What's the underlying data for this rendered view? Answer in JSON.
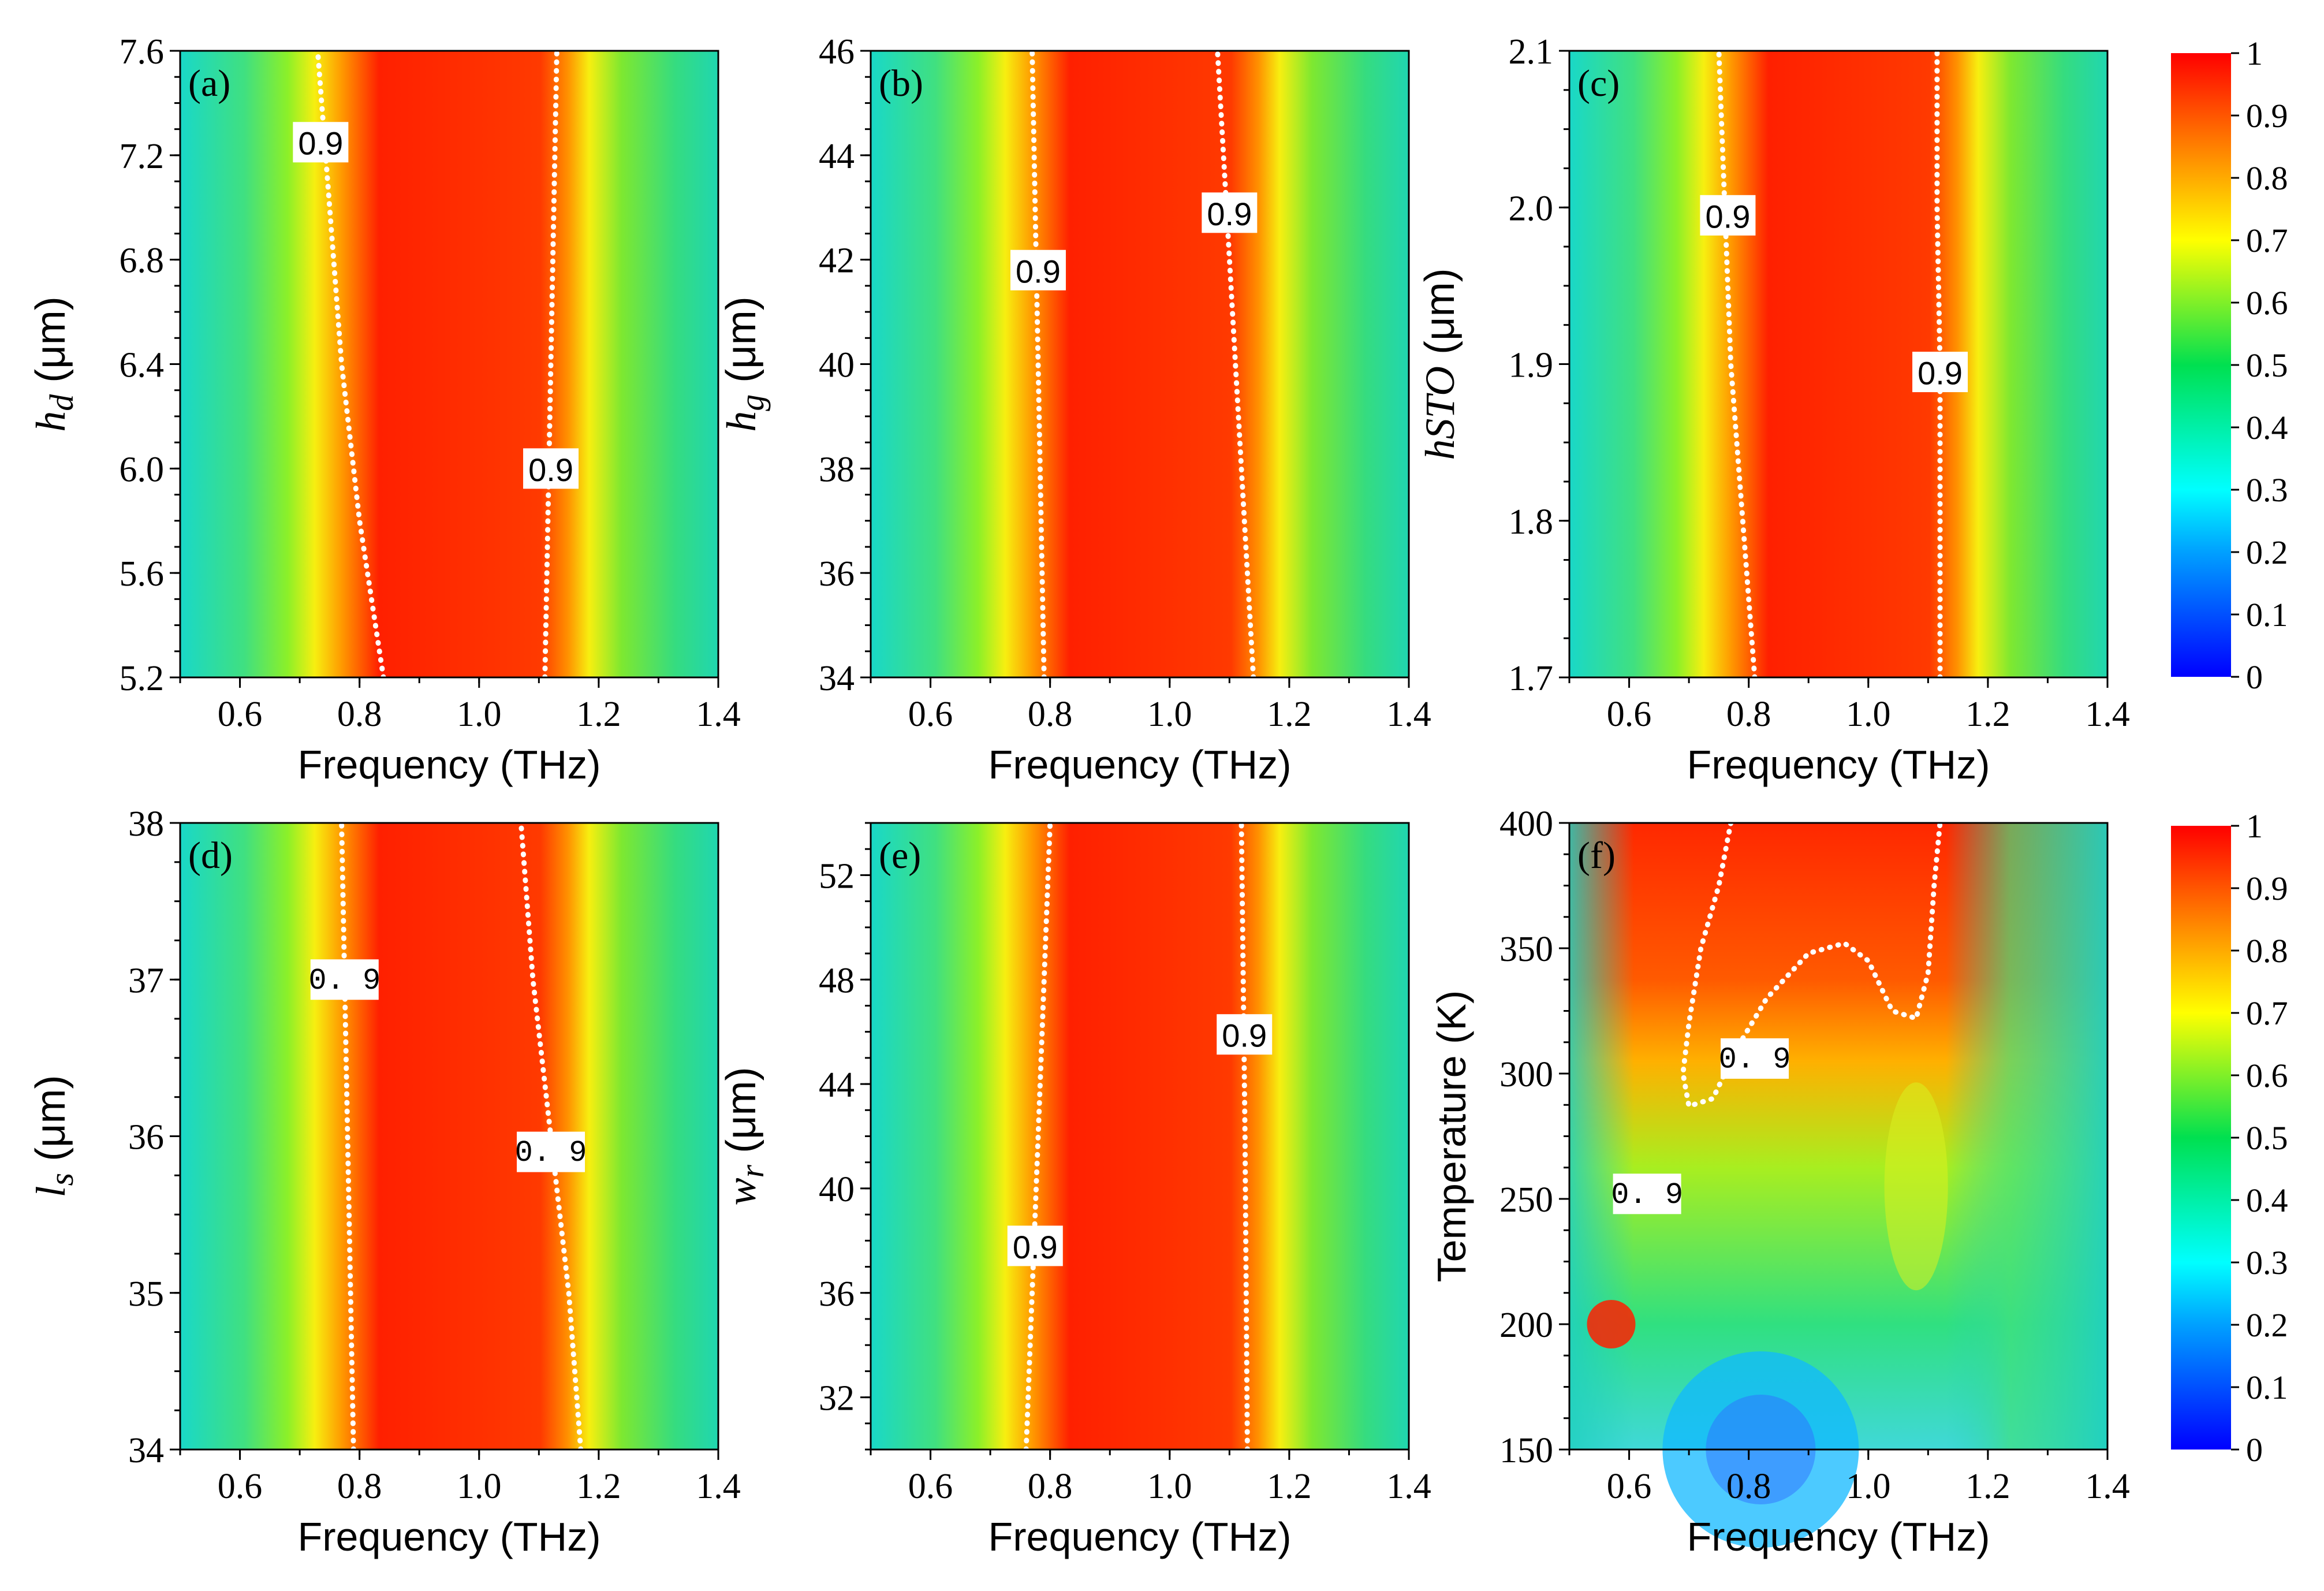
{
  "chart_data": [
    {
      "type": "heatmap",
      "panel_tag": "(a)",
      "xlabel": "Frequency (THz)",
      "ylabel_main": "h",
      "ylabel_sub": "d",
      "ylabel_unit": " (μm)",
      "xlim": [
        0.5,
        1.4
      ],
      "ylim": [
        5.2,
        7.6
      ],
      "xticks": [
        "0.6",
        "0.8",
        "1.0",
        "1.2",
        "1.4"
      ],
      "xtick_values": [
        0.6,
        0.8,
        1.0,
        1.2,
        1.4
      ],
      "yticks": [
        "5.2",
        "5.6",
        "6.0",
        "6.4",
        "6.8",
        "7.2",
        "7.6"
      ],
      "ytick_values": [
        5.2,
        5.6,
        6.0,
        6.4,
        6.8,
        7.2,
        7.6
      ],
      "contour_level": 0.9,
      "contour_label": "0.9",
      "contours": [
        [
          [
            0.84,
            5.2
          ],
          [
            0.8,
            5.8
          ],
          [
            0.77,
            6.4
          ],
          [
            0.75,
            7.0
          ],
          [
            0.73,
            7.6
          ]
        ],
        [
          [
            1.11,
            5.2
          ],
          [
            1.115,
            5.8
          ],
          [
            1.12,
            6.4
          ],
          [
            1.125,
            7.0
          ],
          [
            1.13,
            7.6
          ]
        ]
      ],
      "contour_labels_at": [
        [
          0.735,
          7.25
        ],
        [
          1.12,
          6.0
        ]
      ]
    },
    {
      "type": "heatmap",
      "panel_tag": "(b)",
      "xlabel": "Frequency (THz)",
      "ylabel_main": "h",
      "ylabel_sub": "g",
      "ylabel_unit": " (μm)",
      "xlim": [
        0.5,
        1.4
      ],
      "ylim": [
        34,
        46
      ],
      "xticks": [
        "0.6",
        "0.8",
        "1.0",
        "1.2",
        "1.4"
      ],
      "xtick_values": [
        0.6,
        0.8,
        1.0,
        1.2,
        1.4
      ],
      "yticks": [
        "34",
        "36",
        "38",
        "40",
        "42",
        "44",
        "46"
      ],
      "ytick_values": [
        34,
        36,
        38,
        40,
        42,
        44,
        46
      ],
      "contour_level": 0.9,
      "contour_label": "0.9",
      "contours": [
        [
          [
            0.79,
            34
          ],
          [
            0.785,
            37
          ],
          [
            0.78,
            40
          ],
          [
            0.775,
            43
          ],
          [
            0.77,
            46
          ]
        ],
        [
          [
            1.14,
            34
          ],
          [
            1.125,
            37
          ],
          [
            1.11,
            40
          ],
          [
            1.095,
            43
          ],
          [
            1.08,
            46
          ]
        ]
      ],
      "contour_labels_at": [
        [
          0.78,
          41.8
        ],
        [
          1.1,
          42.9
        ]
      ]
    },
    {
      "type": "heatmap",
      "panel_tag": "(c)",
      "xlabel": "Frequency (THz)",
      "ylabel_main": "hSTO",
      "ylabel_sub": "",
      "ylabel_unit": " (μm)",
      "xlim": [
        0.5,
        1.4
      ],
      "ylim": [
        1.7,
        2.1
      ],
      "xticks": [
        "0.6",
        "0.8",
        "1.0",
        "1.2",
        "1.4"
      ],
      "xtick_values": [
        0.6,
        0.8,
        1.0,
        1.2,
        1.4
      ],
      "yticks": [
        "1.7",
        "1.8",
        "1.9",
        "2.0",
        "2.1"
      ],
      "ytick_values": [
        1.7,
        1.8,
        1.9,
        2.0,
        2.1
      ],
      "contour_level": 0.9,
      "contour_label": "0.9",
      "contours": [
        [
          [
            0.81,
            1.7
          ],
          [
            0.79,
            1.8
          ],
          [
            0.77,
            1.9
          ],
          [
            0.76,
            2.0
          ],
          [
            0.75,
            2.1
          ]
        ],
        [
          [
            1.12,
            1.7
          ],
          [
            1.12,
            1.8
          ],
          [
            1.12,
            1.9
          ],
          [
            1.115,
            2.0
          ],
          [
            1.115,
            2.1
          ]
        ]
      ],
      "contour_labels_at": [
        [
          0.765,
          1.995
        ],
        [
          1.12,
          1.895
        ]
      ]
    },
    {
      "type": "heatmap",
      "panel_tag": "(d)",
      "xlabel": "Frequency (THz)",
      "ylabel_main": "l",
      "ylabel_sub": "s",
      "ylabel_unit": " (μm)",
      "xlim": [
        0.5,
        1.4
      ],
      "ylim": [
        34,
        38
      ],
      "xticks": [
        "0.6",
        "0.8",
        "1.0",
        "1.2",
        "1.4"
      ],
      "xtick_values": [
        0.6,
        0.8,
        1.0,
        1.2,
        1.4
      ],
      "yticks": [
        "34",
        "35",
        "36",
        "37",
        "38"
      ],
      "ytick_values": [
        34,
        35,
        36,
        37,
        38
      ],
      "contour_level": 0.9,
      "contour_label": "0. 9",
      "contours": [
        [
          [
            0.79,
            34
          ],
          [
            0.785,
            35
          ],
          [
            0.78,
            36
          ],
          [
            0.775,
            37
          ],
          [
            0.77,
            38
          ]
        ],
        [
          [
            1.17,
            34
          ],
          [
            1.15,
            35
          ],
          [
            1.12,
            36
          ],
          [
            1.09,
            37
          ],
          [
            1.07,
            38
          ]
        ]
      ],
      "contour_labels_at": [
        [
          0.775,
          37.0
        ],
        [
          1.12,
          35.9
        ]
      ]
    },
    {
      "type": "heatmap",
      "panel_tag": "(e)",
      "xlabel": "Frequency (THz)",
      "ylabel_main": "w",
      "ylabel_sub": "r",
      "ylabel_unit": " (μm)",
      "xlim": [
        0.5,
        1.4
      ],
      "ylim": [
        30,
        54
      ],
      "xticks": [
        "0.6",
        "0.8",
        "1.0",
        "1.2",
        "1.4"
      ],
      "xtick_values": [
        0.6,
        0.8,
        1.0,
        1.2,
        1.4
      ],
      "yticks": [
        "32",
        "36",
        "40",
        "44",
        "48",
        "52"
      ],
      "ytick_values": [
        32,
        36,
        40,
        44,
        48,
        52
      ],
      "contour_level": 0.9,
      "contour_label": "0.9",
      "contours": [
        [
          [
            0.76,
            30
          ],
          [
            0.77,
            36
          ],
          [
            0.78,
            42
          ],
          [
            0.79,
            48
          ],
          [
            0.8,
            54
          ]
        ],
        [
          [
            1.13,
            30
          ],
          [
            1.128,
            36
          ],
          [
            1.126,
            42
          ],
          [
            1.123,
            48
          ],
          [
            1.12,
            54
          ]
        ]
      ],
      "contour_labels_at": [
        [
          0.775,
          37.8
        ],
        [
          1.125,
          45.9
        ]
      ]
    },
    {
      "type": "heatmap",
      "panel_tag": "(f)",
      "xlabel": "Frequency (THz)",
      "ylabel_main": "Temperature (K)",
      "ylabel_sub": "",
      "ylabel_unit": "",
      "xlim": [
        0.5,
        1.4
      ],
      "ylim": [
        150,
        400
      ],
      "xticks": [
        "0.6",
        "0.8",
        "1.0",
        "1.2",
        "1.4"
      ],
      "xtick_values": [
        0.6,
        0.8,
        1.0,
        1.2,
        1.4
      ],
      "yticks": [
        "150",
        "200",
        "250",
        "300",
        "350",
        "400"
      ],
      "ytick_values": [
        150,
        200,
        250,
        300,
        350,
        400
      ],
      "contour_level": 0.9,
      "contour_label": "0. 9",
      "contours": [
        [
          [
            0.77,
            400
          ],
          [
            0.75,
            375
          ],
          [
            0.72,
            350
          ],
          [
            0.7,
            320
          ],
          [
            0.69,
            300
          ],
          [
            0.7,
            287
          ],
          [
            0.74,
            290
          ],
          [
            0.78,
            310
          ],
          [
            0.83,
            330
          ],
          [
            0.9,
            348
          ],
          [
            0.96,
            352
          ],
          [
            1.0,
            345
          ],
          [
            1.04,
            325
          ],
          [
            1.08,
            322
          ],
          [
            1.1,
            340
          ],
          [
            1.11,
            375
          ],
          [
            1.12,
            400
          ]
        ]
      ],
      "contour_labels_at": [
        [
          0.81,
          306
        ],
        [
          0.63,
          252
        ]
      ]
    }
  ],
  "colorbar": {
    "colors": [
      "#0000ff",
      "#00ffff",
      "#00e050",
      "#ffff00",
      "#ff8000",
      "#ff0000"
    ],
    "ticks": [
      "0",
      "0.1",
      "0.2",
      "0.3",
      "0.4",
      "0.5",
      "0.6",
      "0.7",
      "0.8",
      "0.9",
      "1"
    ],
    "tick_values": [
      0,
      0.1,
      0.2,
      0.3,
      0.4,
      0.5,
      0.6,
      0.7,
      0.8,
      0.9,
      1
    ]
  }
}
